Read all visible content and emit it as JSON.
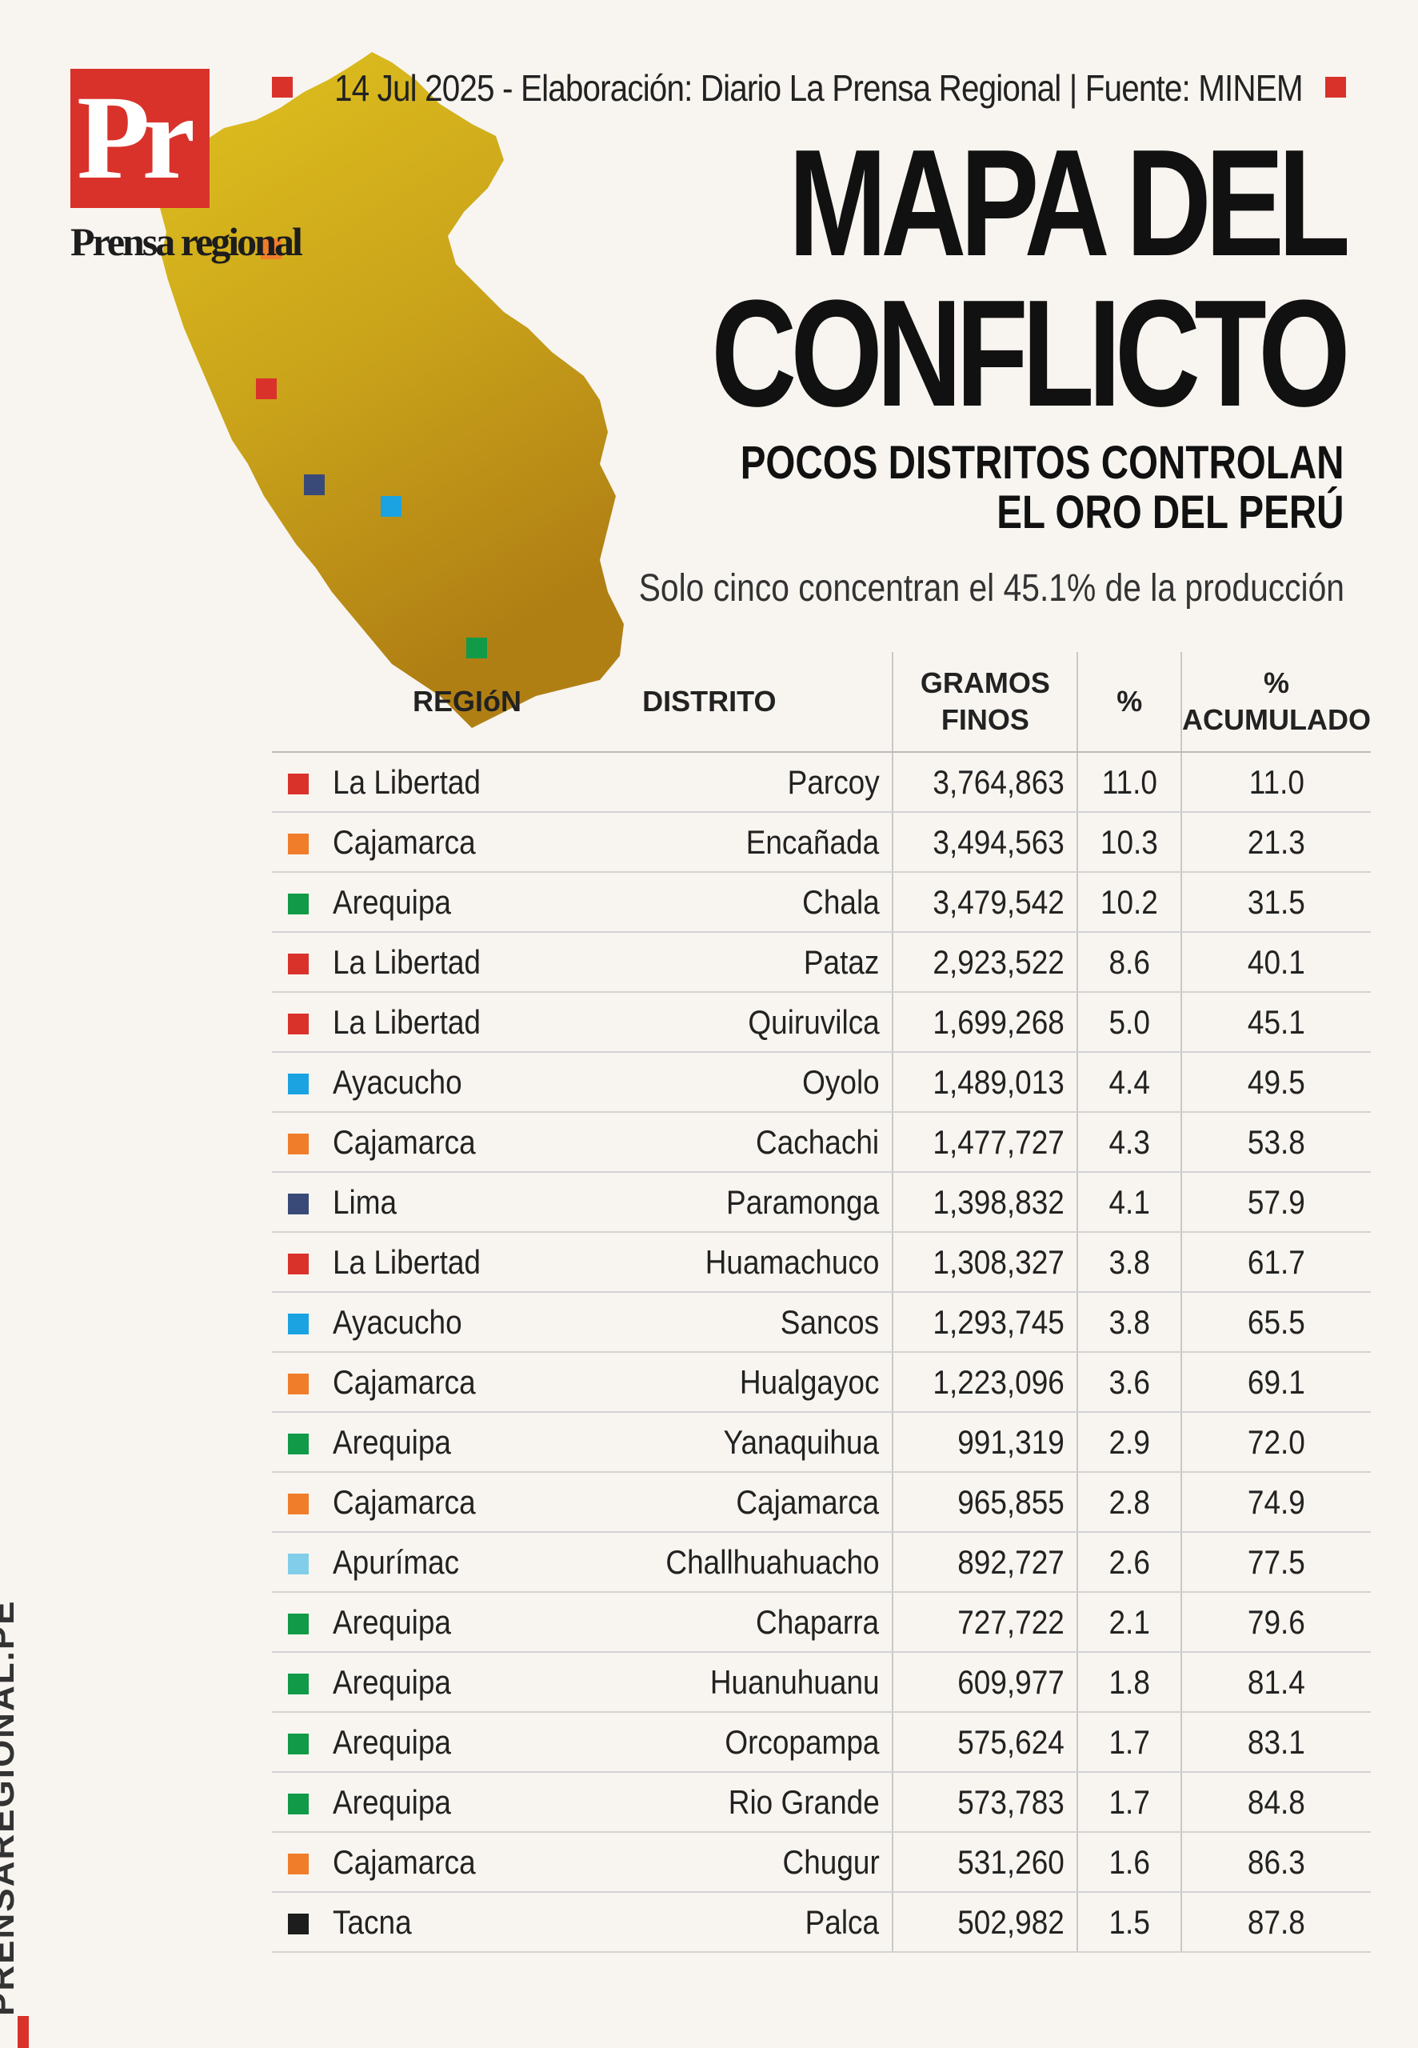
{
  "brand": {
    "logo_text": "Pr",
    "logo_sub": "Prensa regional",
    "side_label": "PRENSAREGIONAL.PE"
  },
  "credit": "14 Jul 2025 -  Elaboración: Diario La Prensa Regional | Fuente: MINEM",
  "title": {
    "line1": "MAPA DEL",
    "line2": "CONFLICTO"
  },
  "subtitle": {
    "line1": "POCOS DISTRITOS CONTROLAN",
    "line2": "EL ORO DEL PERÚ"
  },
  "tagline": "Solo cinco concentran el 45.1% de la producción",
  "colors": {
    "red": "#d8322b",
    "orange": "#f07d2a",
    "green": "#119a48",
    "sky": "#1aa3e0",
    "navy": "#3a4a78",
    "lightblue": "#82cdea",
    "black": "#1d1d1d",
    "gold": "#c8a21a"
  },
  "table": {
    "headers": {
      "region": "REGIóN",
      "district": "DISTRITO",
      "grams_l1": "GRAMOS",
      "grams_l2": "FINOS",
      "pct": "%",
      "acum_l1": "%",
      "acum_l2": "ACUMULADO"
    },
    "rows": [
      {
        "region": "La Libertad",
        "color": "#d8322b",
        "district": "Parcoy",
        "grams": "3,764,863",
        "pct": "11.0",
        "acum": "11.0"
      },
      {
        "region": "Cajamarca",
        "color": "#f07d2a",
        "district": "Encañada",
        "grams": "3,494,563",
        "pct": "10.3",
        "acum": "21.3"
      },
      {
        "region": "Arequipa",
        "color": "#119a48",
        "district": "Chala",
        "grams": "3,479,542",
        "pct": "10.2",
        "acum": "31.5"
      },
      {
        "region": "La Libertad",
        "color": "#d8322b",
        "district": "Pataz",
        "grams": "2,923,522",
        "pct": "8.6",
        "acum": "40.1"
      },
      {
        "region": "La Libertad",
        "color": "#d8322b",
        "district": "Quiruvilca",
        "grams": "1,699,268",
        "pct": "5.0",
        "acum": "45.1"
      },
      {
        "region": "Ayacucho",
        "color": "#1aa3e0",
        "district": "Oyolo",
        "grams": "1,489,013",
        "pct": "4.4",
        "acum": "49.5"
      },
      {
        "region": "Cajamarca",
        "color": "#f07d2a",
        "district": "Cachachi",
        "grams": "1,477,727",
        "pct": "4.3",
        "acum": "53.8"
      },
      {
        "region": "Lima",
        "color": "#3a4a78",
        "district": "Paramonga",
        "grams": "1,398,832",
        "pct": "4.1",
        "acum": "57.9"
      },
      {
        "region": "La Libertad",
        "color": "#d8322b",
        "district": "Huamachuco",
        "grams": "1,308,327",
        "pct": "3.8",
        "acum": "61.7"
      },
      {
        "region": "Ayacucho",
        "color": "#1aa3e0",
        "district": "Sancos",
        "grams": "1,293,745",
        "pct": "3.8",
        "acum": "65.5"
      },
      {
        "region": "Cajamarca",
        "color": "#f07d2a",
        "district": "Hualgayoc",
        "grams": "1,223,096",
        "pct": "3.6",
        "acum": "69.1"
      },
      {
        "region": "Arequipa",
        "color": "#119a48",
        "district": "Yanaquihua",
        "grams": "991,319",
        "pct": "2.9",
        "acum": "72.0"
      },
      {
        "region": "Cajamarca",
        "color": "#f07d2a",
        "district": "Cajamarca",
        "grams": "965,855",
        "pct": "2.8",
        "acum": "74.9"
      },
      {
        "region": "Apurímac",
        "color": "#82cdea",
        "district": "Challhuahuacho",
        "grams": "892,727",
        "pct": "2.6",
        "acum": "77.5"
      },
      {
        "region": "Arequipa",
        "color": "#119a48",
        "district": "Chaparra",
        "grams": "727,722",
        "pct": "2.1",
        "acum": "79.6"
      },
      {
        "region": "Arequipa",
        "color": "#119a48",
        "district": "Huanuhuanu",
        "grams": "609,977",
        "pct": "1.8",
        "acum": "81.4"
      },
      {
        "region": "Arequipa",
        "color": "#119a48",
        "district": "Orcopampa",
        "grams": "575,624",
        "pct": "1.7",
        "acum": "83.1"
      },
      {
        "region": "Arequipa",
        "color": "#119a48",
        "district": "Rio Grande",
        "grams": "573,783",
        "pct": "1.7",
        "acum": "84.8"
      },
      {
        "region": "Cajamarca",
        "color": "#f07d2a",
        "district": "Chugur",
        "grams": "531,260",
        "pct": "1.6",
        "acum": "86.3"
      },
      {
        "region": "Tacna",
        "color": "#1d1d1d",
        "district": "Palca",
        "grams": "502,982",
        "pct": "1.5",
        "acum": "87.8"
      }
    ]
  }
}
